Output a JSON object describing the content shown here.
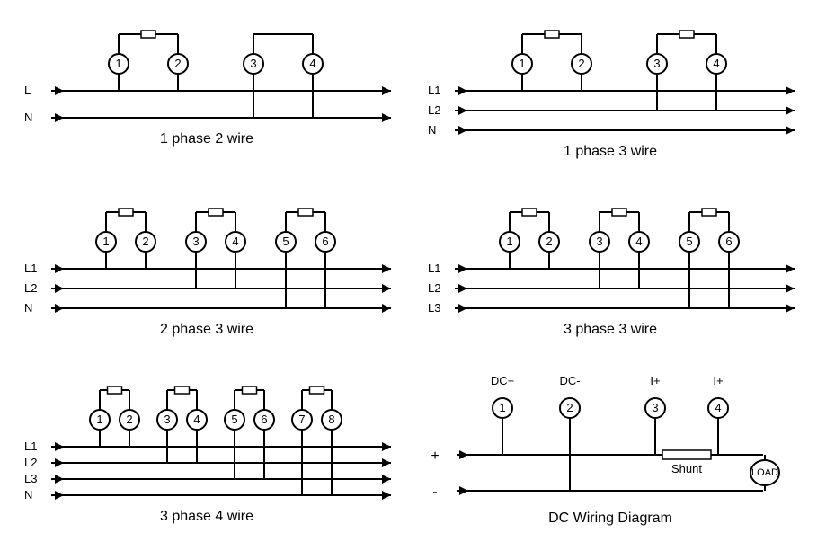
{
  "stroke": "#000000",
  "stroke_width": 2,
  "bg": "#ffffff",
  "terminal_radius": 11,
  "diagrams": [
    {
      "type": "ac",
      "caption": "1 phase 2 wire",
      "lines": [
        "L",
        "N"
      ],
      "pairs": [
        [
          1,
          2
        ],
        [
          3,
          4
        ]
      ],
      "fuses": [
        0
      ],
      "conn34_to": 1
    },
    {
      "type": "ac",
      "caption": "1 phase 3 wire",
      "lines": [
        "L1",
        "L2",
        "N"
      ],
      "pairs": [
        [
          1,
          2
        ],
        [
          3,
          4
        ]
      ],
      "fuses": [
        0,
        1
      ],
      "conn34_to": 1
    },
    {
      "type": "ac",
      "caption": "2 phase 3 wire",
      "lines": [
        "L1",
        "L2",
        "N"
      ],
      "pairs": [
        [
          1,
          2
        ],
        [
          3,
          4
        ],
        [
          5,
          6
        ]
      ],
      "fuses": [
        0,
        1,
        2
      ],
      "midpairs": true
    },
    {
      "type": "ac",
      "caption": "3 phase 3 wire",
      "lines": [
        "L1",
        "L2",
        "L3"
      ],
      "pairs": [
        [
          1,
          2
        ],
        [
          3,
          4
        ],
        [
          5,
          6
        ]
      ],
      "fuses": [
        0,
        1,
        2
      ],
      "midpairs": true
    },
    {
      "type": "ac",
      "caption": "3 phase 4 wire",
      "lines": [
        "L1",
        "L2",
        "L3",
        "N"
      ],
      "pairs": [
        [
          1,
          2
        ],
        [
          3,
          4
        ],
        [
          5,
          6
        ],
        [
          7,
          8
        ]
      ],
      "fuses": [
        0,
        1,
        2,
        3
      ],
      "midpairs": true
    },
    {
      "type": "dc",
      "caption": "DC Wiring Diagram",
      "terminals": [
        "DC+",
        "DC-",
        "I+",
        "I+"
      ],
      "plus": "+",
      "minus": "-",
      "shunt": "Shunt",
      "load": "LOAD"
    }
  ]
}
